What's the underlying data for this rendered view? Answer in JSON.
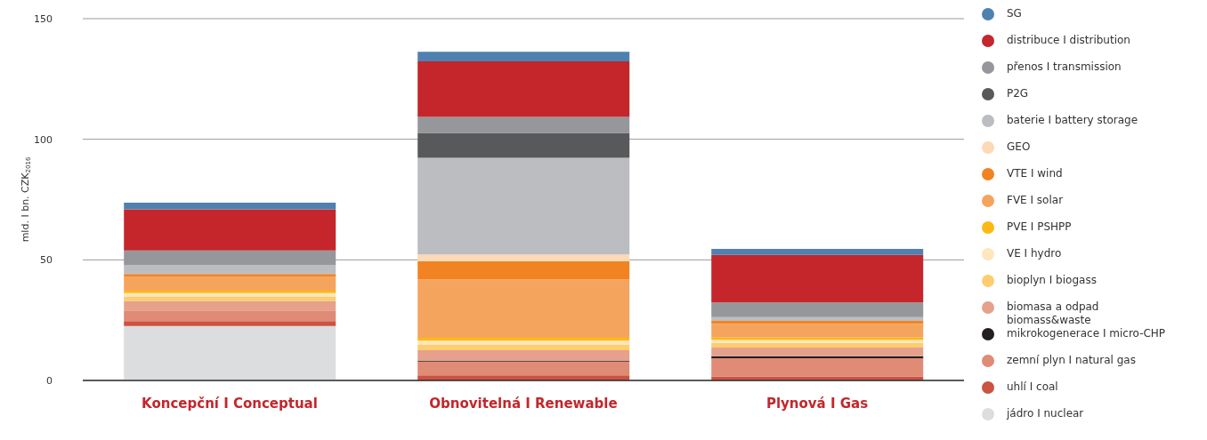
{
  "chart_data": {
    "type": "bar",
    "stacked": true,
    "ylabel": "mld. I bn. CZK$_{2016}$",
    "categories": [
      "Koncepční I Conceptual",
      "Obnovitelná I Renewable",
      "Plynová I Gas"
    ],
    "ylim": [
      0,
      150
    ],
    "yticks": [
      0,
      50,
      100,
      150
    ],
    "grid": "y",
    "legend": "right",
    "series": [
      {
        "name": "jádro I nuclear",
        "color": "#dcdddf",
        "values": [
          22.6,
          0,
          0
        ]
      },
      {
        "name": "uhlí I coal",
        "color": "#cc5242",
        "values": [
          2.0,
          2.1,
          1.7
        ]
      },
      {
        "name": "zemní plyn I natural gas",
        "color": "#df8b76",
        "values": [
          4.4,
          5.7,
          7.5
        ]
      },
      {
        "name": "mikrokogenerace I micro-CHP",
        "color": "#231f20",
        "values": [
          0,
          0.3,
          0.8
        ]
      },
      {
        "name": "biomasa a odpad biomass&waste",
        "color": "#e5a18c",
        "values": [
          4.0,
          4.4,
          3.6
        ]
      },
      {
        "name": "bioplyn I biogass",
        "color": "#fdcd6f",
        "values": [
          1.6,
          2.4,
          2.0
        ]
      },
      {
        "name": "VE I hydro",
        "color": "#fee6bd",
        "values": [
          1.6,
          1.6,
          1.2
        ]
      },
      {
        "name": "PVE I PSHPP",
        "color": "#fdb913",
        "values": [
          1.0,
          1.2,
          1.0
        ]
      },
      {
        "name": "FVE I solar",
        "color": "#f5a45d",
        "values": [
          5.7,
          24.2,
          5.7
        ]
      },
      {
        "name": "VTE I wind",
        "color": "#f28322",
        "values": [
          1.2,
          7.5,
          1.2
        ]
      },
      {
        "name": "GEO",
        "color": "#fdd9b5",
        "values": [
          null,
          2.8,
          null
        ]
      },
      {
        "name": "baterie I battery storage",
        "color": "#bcbdc1",
        "values": [
          3.8,
          40.1,
          1.6
        ]
      },
      {
        "name": "P2G",
        "color": "#58595b",
        "values": [
          0,
          10.3,
          0
        ]
      },
      {
        "name": "přenos I transmission",
        "color": "#96979b",
        "values": [
          6.0,
          6.7,
          6.0
        ]
      },
      {
        "name": "distribuce I distribution",
        "color": "#c4262b",
        "values": [
          17.0,
          23.0,
          19.8
        ]
      },
      {
        "name": "SG",
        "color": "#4f81b0",
        "values": [
          2.8,
          4.0,
          2.4
        ]
      }
    ]
  }
}
